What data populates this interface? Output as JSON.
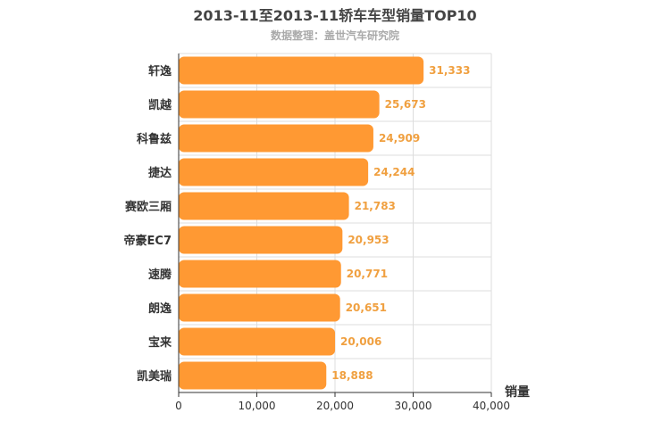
{
  "chart_data": {
    "type": "bar",
    "orientation": "horizontal",
    "title": "2013-11至2013-11轿车车型销量TOP10",
    "subtitle": "数据整理：盖世汽车研究院",
    "categories": [
      "轩逸",
      "凯越",
      "科鲁兹",
      "捷达",
      "赛欧三厢",
      "帝豪EC7",
      "速腾",
      "朗逸",
      "宝来",
      "凯美瑞"
    ],
    "values": [
      31333,
      25673,
      24909,
      24244,
      21783,
      20953,
      20771,
      20651,
      20006,
      18888
    ],
    "value_labels": [
      "31,333",
      "25,673",
      "24,909",
      "24,244",
      "21,783",
      "20,953",
      "20,771",
      "20,651",
      "20,006",
      "18,888"
    ],
    "xlabel": "销量",
    "xlim": [
      0,
      40000
    ],
    "ticks": [
      0,
      10000,
      20000,
      30000,
      40000
    ],
    "tick_labels": [
      "0",
      "10,000",
      "20,000",
      "30,000",
      "40,000"
    ],
    "grid": true,
    "bar_color": "#ff9933",
    "value_label_color": "#f0a040"
  }
}
